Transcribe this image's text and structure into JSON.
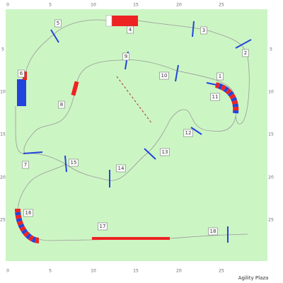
{
  "axes": {
    "top": [
      "0",
      "5",
      "10",
      "15",
      "20",
      "25"
    ],
    "bottom": [
      "0",
      "5",
      "10",
      "15",
      "20",
      "25"
    ],
    "left": [
      "5",
      "10",
      "15",
      "20",
      "25"
    ],
    "right": [
      "5",
      "10",
      "15",
      "20",
      "25"
    ]
  },
  "obstacles": [
    "1",
    "2",
    "3",
    "4",
    "5",
    "6",
    "7",
    "8",
    "9",
    "10",
    "11",
    "12",
    "13",
    "14",
    "15",
    "16",
    "17",
    "18"
  ],
  "footer": "Agility Plaza"
}
